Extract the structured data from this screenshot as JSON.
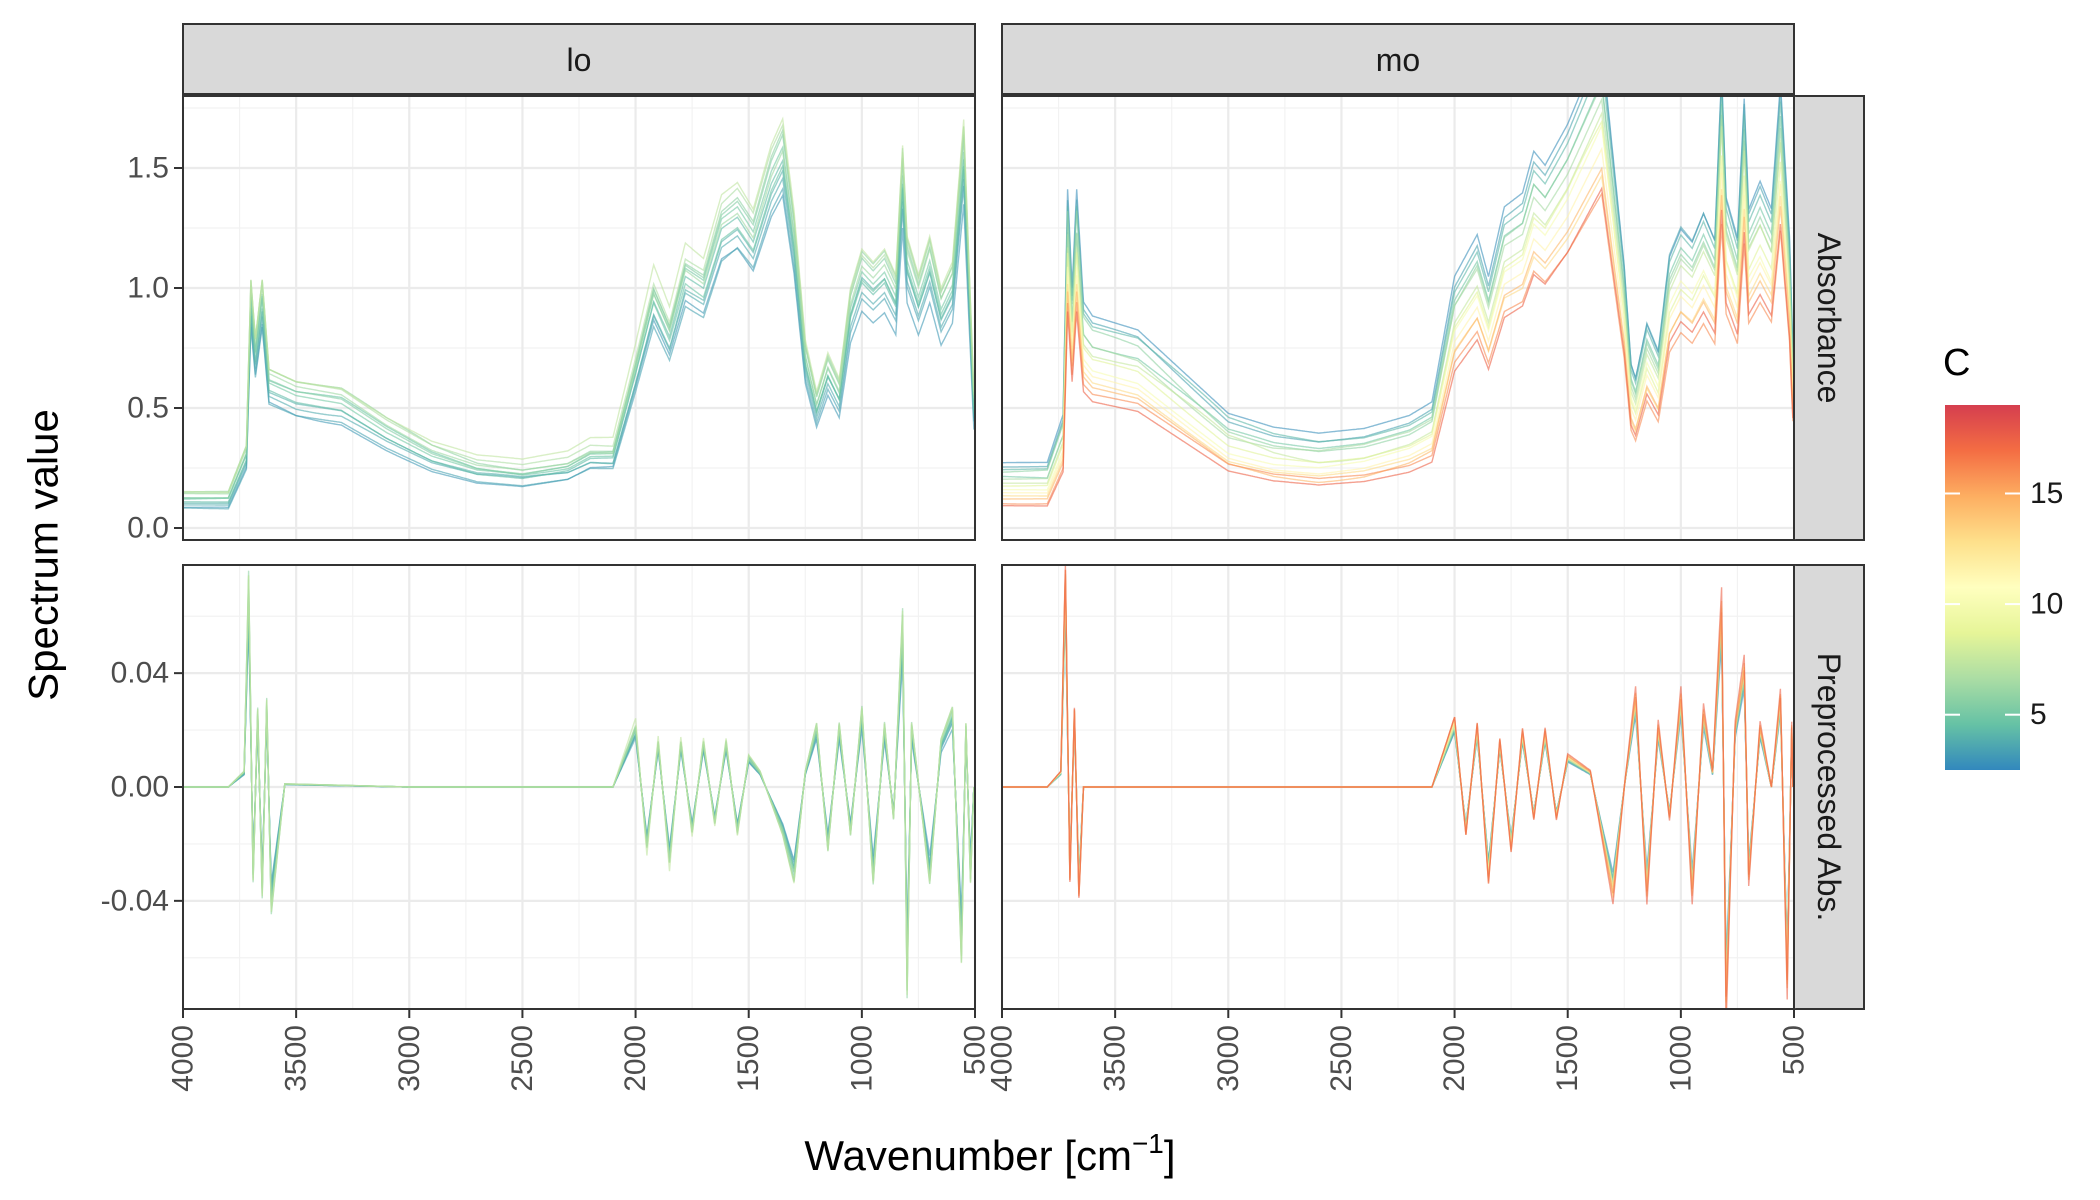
{
  "chart_data": {
    "type": "line",
    "facet_columns": [
      "lo",
      "mo"
    ],
    "facet_rows": [
      "Absorbance",
      "Preprocessed Abs."
    ],
    "xlabel": "Wavenumber [cm",
    "xlabel_superscript": "−1",
    "xlabel_suffix": "]",
    "ylabel": "Spectrum value",
    "x_reversed": true,
    "xlim": [
      4000,
      500
    ],
    "x_ticks": [
      4000,
      3500,
      3000,
      2500,
      2000,
      1500,
      1000,
      500
    ],
    "x_tick_labels": [
      "4000",
      "3500",
      "3000",
      "2500",
      "2000",
      "1500",
      "1000",
      "500"
    ],
    "rows": [
      {
        "ylim": [
          -0.05,
          1.8
        ],
        "y_ticks": [
          0.0,
          0.5,
          1.0,
          1.5
        ],
        "y_tick_labels": [
          "0.0",
          "0.5",
          "1.0",
          "1.5"
        ]
      },
      {
        "ylim": [
          -0.078,
          0.078
        ],
        "y_ticks": [
          -0.04,
          0.0,
          0.04
        ],
        "y_tick_labels": [
          "-0.04",
          "0.00",
          "0.04"
        ]
      }
    ],
    "grid": true,
    "color_legend": {
      "title": "C",
      "range": [
        2.5,
        19
      ],
      "ticks": [
        5,
        10,
        15
      ],
      "tick_labels": [
        "5",
        "10",
        "15"
      ],
      "palette": [
        "#3288bd",
        "#66c2a5",
        "#abdda4",
        "#e6f598",
        "#ffffbf",
        "#fee08b",
        "#fdae61",
        "#f46d43",
        "#d53e4f"
      ],
      "position": "right"
    },
    "representative_spectra": {
      "lo": {
        "Absorbance": [
          [
            4000,
            0.12
          ],
          [
            3800,
            0.12
          ],
          [
            3720,
            0.3
          ],
          [
            3700,
            0.95
          ],
          [
            3680,
            0.72
          ],
          [
            3650,
            0.95
          ],
          [
            3620,
            0.6
          ],
          [
            3500,
            0.55
          ],
          [
            3300,
            0.52
          ],
          [
            3100,
            0.4
          ],
          [
            2900,
            0.3
          ],
          [
            2700,
            0.24
          ],
          [
            2500,
            0.22
          ],
          [
            2300,
            0.25
          ],
          [
            2200,
            0.3
          ],
          [
            2100,
            0.3
          ],
          [
            2000,
            0.65
          ],
          [
            1920,
            0.95
          ],
          [
            1850,
            0.8
          ],
          [
            1780,
            1.05
          ],
          [
            1700,
            1.0
          ],
          [
            1620,
            1.25
          ],
          [
            1550,
            1.3
          ],
          [
            1480,
            1.2
          ],
          [
            1400,
            1.45
          ],
          [
            1350,
            1.55
          ],
          [
            1300,
            1.2
          ],
          [
            1250,
            0.7
          ],
          [
            1200,
            0.5
          ],
          [
            1150,
            0.65
          ],
          [
            1100,
            0.55
          ],
          [
            1050,
            0.9
          ],
          [
            1000,
            1.05
          ],
          [
            950,
            1.0
          ],
          [
            900,
            1.05
          ],
          [
            850,
            0.95
          ],
          [
            820,
            1.45
          ],
          [
            800,
            1.1
          ],
          [
            750,
            0.95
          ],
          [
            700,
            1.1
          ],
          [
            650,
            0.9
          ],
          [
            600,
            1.0
          ],
          [
            550,
            1.55
          ],
          [
            520,
            0.85
          ],
          [
            505,
            0.5
          ]
        ],
        "Preprocessed Abs.": [
          [
            4000,
            0.0
          ],
          [
            3800,
            0.0
          ],
          [
            3730,
            0.005
          ],
          [
            3710,
            0.068
          ],
          [
            3690,
            -0.03
          ],
          [
            3670,
            0.025
          ],
          [
            3650,
            -0.035
          ],
          [
            3630,
            0.028
          ],
          [
            3610,
            -0.04
          ],
          [
            3550,
            0.001
          ],
          [
            3000,
            0.0
          ],
          [
            2500,
            0.0
          ],
          [
            2100,
            0.0
          ],
          [
            2000,
            0.02
          ],
          [
            1950,
            -0.02
          ],
          [
            1900,
            0.015
          ],
          [
            1850,
            -0.025
          ],
          [
            1800,
            0.015
          ],
          [
            1750,
            -0.015
          ],
          [
            1700,
            0.015
          ],
          [
            1650,
            -0.012
          ],
          [
            1600,
            0.015
          ],
          [
            1550,
            -0.015
          ],
          [
            1500,
            0.01
          ],
          [
            1450,
            0.005
          ],
          [
            1350,
            -0.015
          ],
          [
            1300,
            -0.03
          ],
          [
            1250,
            0.005
          ],
          [
            1200,
            0.02
          ],
          [
            1150,
            -0.02
          ],
          [
            1100,
            0.02
          ],
          [
            1050,
            -0.015
          ],
          [
            1000,
            0.025
          ],
          [
            950,
            -0.03
          ],
          [
            900,
            0.02
          ],
          [
            860,
            -0.01
          ],
          [
            820,
            0.055
          ],
          [
            800,
            -0.065
          ],
          [
            780,
            0.02
          ],
          [
            700,
            -0.03
          ],
          [
            650,
            0.015
          ],
          [
            600,
            0.025
          ],
          [
            560,
            -0.055
          ],
          [
            540,
            0.02
          ],
          [
            520,
            -0.03
          ],
          [
            505,
            0.0
          ]
        ]
      },
      "mo": {
        "Absorbance": [
          [
            4000,
            0.18
          ],
          [
            3800,
            0.18
          ],
          [
            3730,
            0.35
          ],
          [
            3710,
            1.15
          ],
          [
            3690,
            0.8
          ],
          [
            3670,
            1.15
          ],
          [
            3640,
            0.75
          ],
          [
            3600,
            0.7
          ],
          [
            3400,
            0.65
          ],
          [
            3200,
            0.5
          ],
          [
            3000,
            0.35
          ],
          [
            2800,
            0.3
          ],
          [
            2600,
            0.28
          ],
          [
            2400,
            0.3
          ],
          [
            2200,
            0.35
          ],
          [
            2100,
            0.4
          ],
          [
            2000,
            0.85
          ],
          [
            1900,
            1.0
          ],
          [
            1850,
            0.85
          ],
          [
            1780,
            1.1
          ],
          [
            1700,
            1.15
          ],
          [
            1650,
            1.3
          ],
          [
            1600,
            1.25
          ],
          [
            1500,
            1.4
          ],
          [
            1400,
            1.6
          ],
          [
            1350,
            1.7
          ],
          [
            1300,
            1.3
          ],
          [
            1250,
            0.9
          ],
          [
            1220,
            0.55
          ],
          [
            1200,
            0.5
          ],
          [
            1150,
            0.7
          ],
          [
            1100,
            0.6
          ],
          [
            1050,
            0.95
          ],
          [
            1000,
            1.05
          ],
          [
            950,
            1.0
          ],
          [
            900,
            1.1
          ],
          [
            850,
            1.0
          ],
          [
            820,
            1.6
          ],
          [
            800,
            1.15
          ],
          [
            750,
            1.0
          ],
          [
            720,
            1.5
          ],
          [
            700,
            1.1
          ],
          [
            650,
            1.2
          ],
          [
            600,
            1.1
          ],
          [
            560,
            1.55
          ],
          [
            520,
            1.0
          ],
          [
            505,
            0.6
          ]
        ],
        "Preprocessed Abs.": [
          [
            4000,
            0.0
          ],
          [
            3800,
            0.0
          ],
          [
            3740,
            0.005
          ],
          [
            3720,
            0.07
          ],
          [
            3700,
            -0.03
          ],
          [
            3680,
            0.025
          ],
          [
            3660,
            -0.035
          ],
          [
            3640,
            0.0
          ],
          [
            3000,
            0.0
          ],
          [
            2500,
            0.0
          ],
          [
            2100,
            0.0
          ],
          [
            2000,
            0.022
          ],
          [
            1950,
            -0.015
          ],
          [
            1900,
            0.02
          ],
          [
            1850,
            -0.03
          ],
          [
            1800,
            0.015
          ],
          [
            1750,
            -0.02
          ],
          [
            1700,
            0.018
          ],
          [
            1650,
            -0.01
          ],
          [
            1600,
            0.018
          ],
          [
            1550,
            -0.01
          ],
          [
            1500,
            0.01
          ],
          [
            1400,
            0.005
          ],
          [
            1350,
            -0.015
          ],
          [
            1300,
            -0.035
          ],
          [
            1250,
            0.0
          ],
          [
            1200,
            0.03
          ],
          [
            1150,
            -0.035
          ],
          [
            1100,
            0.02
          ],
          [
            1050,
            -0.01
          ],
          [
            1000,
            0.03
          ],
          [
            950,
            -0.035
          ],
          [
            900,
            0.025
          ],
          [
            860,
            0.005
          ],
          [
            820,
            0.06
          ],
          [
            800,
            -0.072
          ],
          [
            760,
            0.02
          ],
          [
            720,
            0.04
          ],
          [
            700,
            -0.03
          ],
          [
            650,
            0.02
          ],
          [
            600,
            0.0
          ],
          [
            560,
            0.03
          ],
          [
            530,
            -0.065
          ],
          [
            510,
            0.02
          ],
          [
            505,
            0.0
          ]
        ]
      }
    }
  }
}
